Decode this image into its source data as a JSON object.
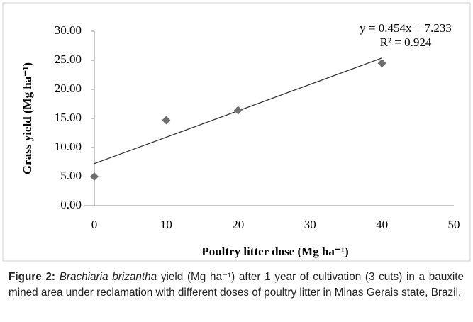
{
  "chart_data": {
    "type": "scatter",
    "xlabel": "Poultry litter dose (Mg ha⁻¹)",
    "ylabel": "Grass yield (Mg ha⁻¹)",
    "x": [
      0,
      10,
      20,
      40
    ],
    "series": [
      {
        "color": "#6e6e6e",
        "values": [
          5.0,
          14.7,
          16.4,
          24.5
        ]
      }
    ],
    "trendline": {
      "slope": 0.454,
      "intercept": 7.233,
      "color": "#333333"
    },
    "annotations": [
      "y = 0.454x + 7.233",
      "R² = 0.924"
    ],
    "xlim": [
      0,
      50
    ],
    "xticks": [
      0,
      10,
      20,
      30,
      40,
      50
    ],
    "ylim": [
      0,
      30
    ],
    "yticks": [
      {
        "value": 0,
        "label": "0.00"
      },
      {
        "value": 5,
        "label": "5.00"
      },
      {
        "value": 10,
        "label": "10.00"
      },
      {
        "value": 15,
        "label": "15.00"
      },
      {
        "value": 20,
        "label": "20.00"
      },
      {
        "value": 25,
        "label": "25.00"
      },
      {
        "value": 30,
        "label": "30.00"
      }
    ],
    "grid": false
  },
  "caption": {
    "label": "Figure 2:",
    "species": "Brachiaria brizantha",
    "text": "yield (Mg ha⁻¹) after 1 year of cultivation (3 cuts) in a bauxite mined area under reclamation with different doses of poultry litter in Minas Gerais state, Brazil."
  }
}
